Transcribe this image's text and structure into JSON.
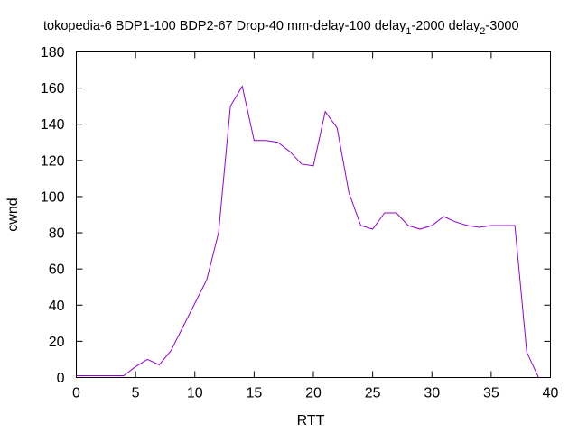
{
  "chart_data": {
    "type": "line",
    "title": "tokopedia-6 BDP1-100 BDP2-67 Drop-40 mm-delay-100 delay",
    "title_parts": {
      "d1_sub": "1",
      "d1_val": "-2000 delay",
      "d2_sub": "2",
      "d2_val": "-3000"
    },
    "xlabel": "RTT",
    "ylabel": "cwnd",
    "xlim": [
      0,
      40
    ],
    "ylim": [
      0,
      180
    ],
    "xticks": [
      0,
      5,
      10,
      15,
      20,
      25,
      30,
      35,
      40
    ],
    "yticks": [
      0,
      20,
      40,
      60,
      80,
      100,
      120,
      140,
      160,
      180
    ],
    "grid": false,
    "series": [
      {
        "color": "#9400d3",
        "x": [
          0,
          1,
          2,
          3,
          4,
          5,
          6,
          7,
          8,
          9,
          10,
          11,
          12,
          13,
          14,
          15,
          16,
          17,
          18,
          19,
          20,
          21,
          22,
          23,
          24,
          25,
          26,
          27,
          28,
          29,
          30,
          31,
          32,
          33,
          34,
          35,
          36,
          37,
          38,
          39
        ],
        "y": [
          1,
          1,
          1,
          1,
          1,
          6,
          10,
          7,
          15,
          28,
          41,
          54,
          80,
          150,
          161,
          131,
          131,
          130,
          125,
          118,
          117,
          147,
          138,
          102,
          84,
          82,
          91,
          91,
          84,
          82,
          84,
          89,
          86,
          84,
          83,
          84,
          84,
          84,
          14,
          0
        ]
      }
    ]
  }
}
